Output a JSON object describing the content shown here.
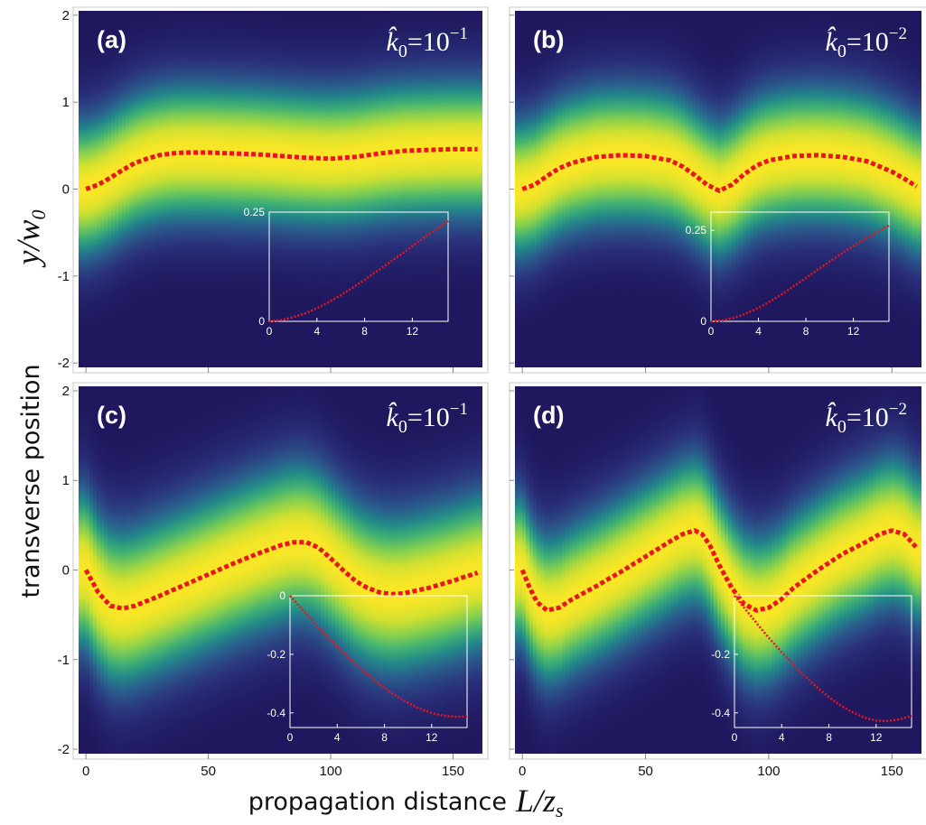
{
  "figure": {
    "ylabel_text": "transverse position",
    "ylabel_math": "y/w",
    "ylabel_math_sub": "0",
    "xlabel_text": "propagation distance",
    "xlabel_math": "L/z",
    "xlabel_math_sub": "s",
    "colors": {
      "background": "#1e1760",
      "mid": "#22a785",
      "peak": "#fde725",
      "trajectory": "#e8141e",
      "inset_frame": "#ffffff"
    }
  },
  "chart_data": [
    {
      "id": "a",
      "type": "heatmap",
      "panel_label": "(a)",
      "annotation": {
        "base": "k̂",
        "sub": "0",
        "eq": "=10",
        "exp": "−1"
      },
      "xlim": [
        -3,
        162
      ],
      "ylim": [
        -2.05,
        2.05
      ],
      "x_ticks": [
        0,
        50,
        100,
        150
      ],
      "x_tick_labels": [
        "",
        "",
        "",
        ""
      ],
      "y_ticks": [
        2,
        1,
        0,
        -1,
        -2
      ],
      "y_tick_labels": [
        "2",
        "1",
        "0",
        "-1",
        "-2"
      ],
      "beam_width": 0.55,
      "trajectory": {
        "x": [
          0,
          5,
          10,
          15,
          20,
          25,
          30,
          35,
          40,
          50,
          60,
          70,
          80,
          90,
          100,
          110,
          120,
          130,
          140,
          150,
          160
        ],
        "y": [
          0.0,
          0.05,
          0.13,
          0.22,
          0.3,
          0.35,
          0.39,
          0.41,
          0.42,
          0.42,
          0.41,
          0.4,
          0.38,
          0.36,
          0.35,
          0.37,
          0.41,
          0.44,
          0.45,
          0.46,
          0.46
        ]
      },
      "inset": {
        "xlim": [
          0,
          15
        ],
        "ylim": [
          0,
          0.25
        ],
        "x_ticks": [
          0,
          4,
          8,
          12
        ],
        "x_tick_labels": [
          "0",
          "4",
          "8",
          "12"
        ],
        "y_ticks": [
          0,
          0.25
        ],
        "y_tick_labels": [
          "0",
          "0.25"
        ],
        "x": [
          0,
          1,
          2,
          3,
          4,
          5,
          6,
          7,
          8,
          9,
          10,
          11,
          12,
          13,
          14,
          15
        ],
        "y": [
          0,
          0.003,
          0.009,
          0.018,
          0.03,
          0.044,
          0.06,
          0.077,
          0.095,
          0.114,
          0.133,
          0.152,
          0.172,
          0.192,
          0.211,
          0.23
        ]
      }
    },
    {
      "id": "b",
      "type": "heatmap",
      "panel_label": "(b)",
      "annotation": {
        "base": "k̂",
        "sub": "0",
        "eq": "=10",
        "exp": "−2"
      },
      "xlim": [
        -3,
        162
      ],
      "ylim": [
        -2.05,
        2.05
      ],
      "x_ticks": [
        0,
        50,
        100,
        150
      ],
      "x_tick_labels": [
        "",
        "",
        "",
        ""
      ],
      "y_ticks": [
        2,
        1,
        0,
        -1,
        -2
      ],
      "y_tick_labels": [
        "",
        "",
        "",
        "",
        ""
      ],
      "beam_width": 0.55,
      "trajectory": {
        "x": [
          0,
          5,
          10,
          15,
          20,
          30,
          40,
          50,
          60,
          65,
          70,
          75,
          80,
          85,
          90,
          95,
          100,
          110,
          120,
          130,
          140,
          150,
          155,
          160
        ],
        "y": [
          0.0,
          0.05,
          0.15,
          0.24,
          0.3,
          0.37,
          0.39,
          0.38,
          0.33,
          0.26,
          0.16,
          0.05,
          -0.02,
          0.05,
          0.17,
          0.27,
          0.33,
          0.38,
          0.39,
          0.37,
          0.32,
          0.2,
          0.12,
          0.03
        ]
      },
      "inset": {
        "xlim": [
          0,
          15
        ],
        "ylim": [
          0,
          0.3
        ],
        "x_ticks": [
          0,
          4,
          8,
          12
        ],
        "x_tick_labels": [
          "0",
          "4",
          "8",
          "12"
        ],
        "y_ticks": [
          0,
          0.25
        ],
        "y_tick_labels": [
          "0",
          "0.25"
        ],
        "x": [
          0,
          1,
          2,
          3,
          4,
          5,
          6,
          7,
          8,
          9,
          10,
          11,
          12,
          13,
          14,
          15
        ],
        "y": [
          0,
          0.003,
          0.01,
          0.022,
          0.037,
          0.055,
          0.075,
          0.097,
          0.119,
          0.142,
          0.164,
          0.186,
          0.207,
          0.227,
          0.246,
          0.263
        ]
      }
    },
    {
      "id": "c",
      "type": "heatmap",
      "panel_label": "(c)",
      "annotation": {
        "base": "k̂",
        "sub": "0",
        "eq": "=10",
        "exp": "−1"
      },
      "xlim": [
        -3,
        162
      ],
      "ylim": [
        -2.05,
        2.05
      ],
      "x_ticks": [
        0,
        50,
        100,
        150
      ],
      "x_tick_labels": [
        "0",
        "50",
        "100",
        "150"
      ],
      "y_ticks": [
        2,
        1,
        0,
        -1,
        -2
      ],
      "y_tick_labels": [
        "2",
        "1",
        "0",
        "-1",
        "-2"
      ],
      "beam_width": 0.62,
      "trajectory": {
        "x": [
          0,
          5,
          10,
          15,
          20,
          30,
          40,
          50,
          60,
          70,
          80,
          85,
          90,
          95,
          100,
          105,
          110,
          115,
          120,
          125,
          130,
          140,
          150,
          160
        ],
        "y": [
          0.0,
          -0.25,
          -0.4,
          -0.43,
          -0.4,
          -0.29,
          -0.17,
          -0.05,
          0.07,
          0.18,
          0.28,
          0.31,
          0.31,
          0.25,
          0.13,
          0.0,
          -0.12,
          -0.2,
          -0.25,
          -0.27,
          -0.26,
          -0.2,
          -0.12,
          -0.03
        ]
      },
      "inset": {
        "xlim": [
          0,
          15
        ],
        "ylim": [
          -0.45,
          0
        ],
        "x_ticks": [
          0,
          4,
          8,
          12
        ],
        "x_tick_labels": [
          "0",
          "4",
          "8",
          "12"
        ],
        "y_ticks": [
          0,
          -0.2,
          -0.4
        ],
        "y_tick_labels": [
          "0",
          "-0.2",
          "-0.4"
        ],
        "x": [
          0,
          1,
          2,
          3,
          4,
          5,
          6,
          7,
          8,
          9,
          10,
          11,
          12,
          13,
          14,
          15
        ],
        "y": [
          0,
          -0.045,
          -0.09,
          -0.133,
          -0.174,
          -0.213,
          -0.25,
          -0.284,
          -0.315,
          -0.342,
          -0.366,
          -0.386,
          -0.4,
          -0.41,
          -0.413,
          -0.413
        ]
      }
    },
    {
      "id": "d",
      "type": "heatmap",
      "panel_label": "(d)",
      "annotation": {
        "base": "k̂",
        "sub": "0",
        "eq": "=10",
        "exp": "−2"
      },
      "xlim": [
        -3,
        162
      ],
      "ylim": [
        -2.05,
        2.05
      ],
      "x_ticks": [
        0,
        50,
        100,
        150
      ],
      "x_tick_labels": [
        "0",
        "50",
        "100",
        "150"
      ],
      "y_ticks": [
        2,
        1,
        0,
        -1,
        -2
      ],
      "y_tick_labels": [
        "",
        "",
        "",
        "",
        ""
      ],
      "beam_width": 0.58,
      "trajectory": {
        "x": [
          0,
          3,
          6,
          10,
          15,
          20,
          30,
          40,
          50,
          60,
          65,
          70,
          73,
          76,
          80,
          85,
          90,
          95,
          100,
          105,
          110,
          120,
          130,
          140,
          145,
          150,
          155,
          160
        ],
        "y": [
          0.0,
          -0.2,
          -0.36,
          -0.45,
          -0.42,
          -0.33,
          -0.18,
          -0.02,
          0.15,
          0.32,
          0.4,
          0.44,
          0.4,
          0.28,
          0.05,
          -0.2,
          -0.38,
          -0.45,
          -0.42,
          -0.33,
          -0.2,
          0.0,
          0.18,
          0.32,
          0.4,
          0.44,
          0.4,
          0.25
        ]
      },
      "inset": {
        "xlim": [
          0,
          15
        ],
        "ylim": [
          -0.45,
          0
        ],
        "x_ticks": [
          0,
          4,
          8,
          12
        ],
        "x_tick_labels": [
          "0",
          "4",
          "8",
          "12"
        ],
        "y_ticks": [
          -0.2,
          -0.4
        ],
        "y_tick_labels": [
          "-0.2",
          "-0.4"
        ],
        "x": [
          0,
          1,
          2,
          3,
          4,
          5,
          6,
          7,
          8,
          9,
          10,
          11,
          12,
          13,
          14,
          15
        ],
        "y": [
          0,
          -0.05,
          -0.1,
          -0.148,
          -0.193,
          -0.236,
          -0.276,
          -0.313,
          -0.346,
          -0.375,
          -0.398,
          -0.416,
          -0.426,
          -0.428,
          -0.422,
          -0.41
        ]
      }
    }
  ]
}
